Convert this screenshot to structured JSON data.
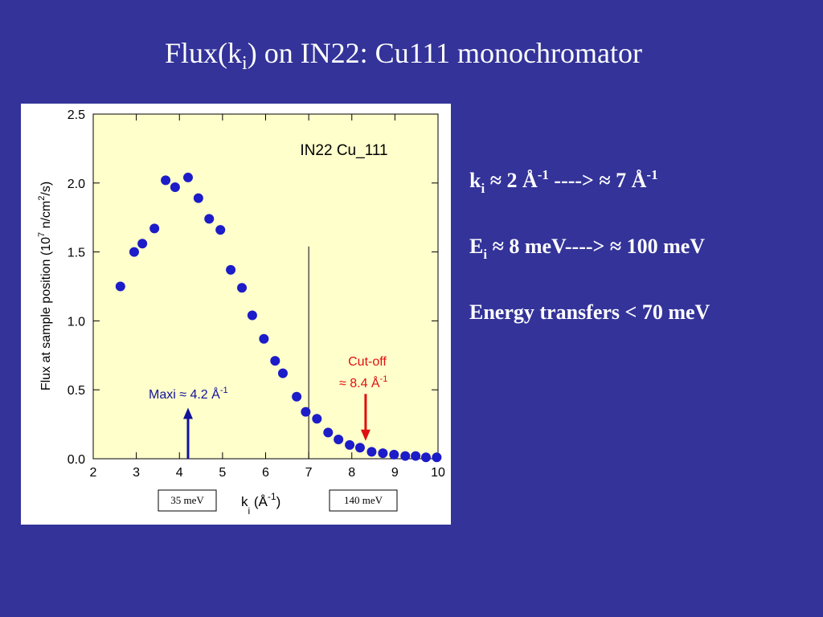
{
  "slide": {
    "title": [
      "Flux(k",
      "i",
      ") on IN22: Cu111 monochromator"
    ],
    "lines": [
      [
        "k",
        "i",
        " ≈ 2 Å",
        "-1",
        " ----> ≈ 7 Å",
        "-1"
      ],
      [
        "E",
        "i",
        " ≈ 8 meV----> ≈ 100 meV"
      ],
      [
        "Energy transfers < 70 meV"
      ]
    ],
    "boxes": [
      "35 meV",
      "140 meV"
    ]
  },
  "chart_data": {
    "type": "scatter",
    "inset_title": "IN22   Cu_111",
    "y_label": [
      "Flux at sample position (10",
      "7",
      " n/cm",
      "2",
      "/s)"
    ],
    "x_label": [
      "k",
      "i",
      " (Å",
      "-1",
      ")"
    ],
    "color": "#1c1cc8",
    "x": [
      2.63,
      2.95,
      3.14,
      3.42,
      3.68,
      3.9,
      4.2,
      4.44,
      4.69,
      4.95,
      5.19,
      5.45,
      5.69,
      5.96,
      6.22,
      6.4,
      6.72,
      6.93,
      7.19,
      7.45,
      7.69,
      7.95,
      8.19,
      8.46,
      8.72,
      8.98,
      9.24,
      9.48,
      9.72,
      9.97
    ],
    "values": [
      1.25,
      1.5,
      1.56,
      1.67,
      2.02,
      1.97,
      2.04,
      1.89,
      1.74,
      1.66,
      1.37,
      1.24,
      1.04,
      0.87,
      0.71,
      0.62,
      0.45,
      0.34,
      0.29,
      0.19,
      0.14,
      0.1,
      0.08,
      0.05,
      0.04,
      0.03,
      0.02,
      0.02,
      0.01,
      0.01
    ],
    "xlim": [
      2,
      10
    ],
    "ylim": [
      0,
      2.5
    ],
    "xticks": [
      2,
      3,
      4,
      5,
      6,
      7,
      8,
      9,
      10
    ],
    "yticks": [
      {
        "value": 0,
        "label": "0.0"
      },
      0.5,
      {
        "value": 1,
        "label": "1.0"
      },
      1.5,
      {
        "value": 2,
        "label": "2.0"
      },
      2.5
    ],
    "reference_line": {
      "x": 7,
      "top": 1.54
    },
    "arrows": [
      {
        "x": 4.2,
        "y": [
          0,
          0.37
        ],
        "color": "#12129a",
        "label": [
          "Maxi ≈ 4.2 Å",
          "-1"
        ]
      },
      {
        "x": 8.32,
        "y": [
          0.47,
          0.13
        ],
        "color": "#e01010",
        "label": [
          "Cut-off",
          "≈ 8.4 Å",
          "-1"
        ]
      }
    ]
  }
}
